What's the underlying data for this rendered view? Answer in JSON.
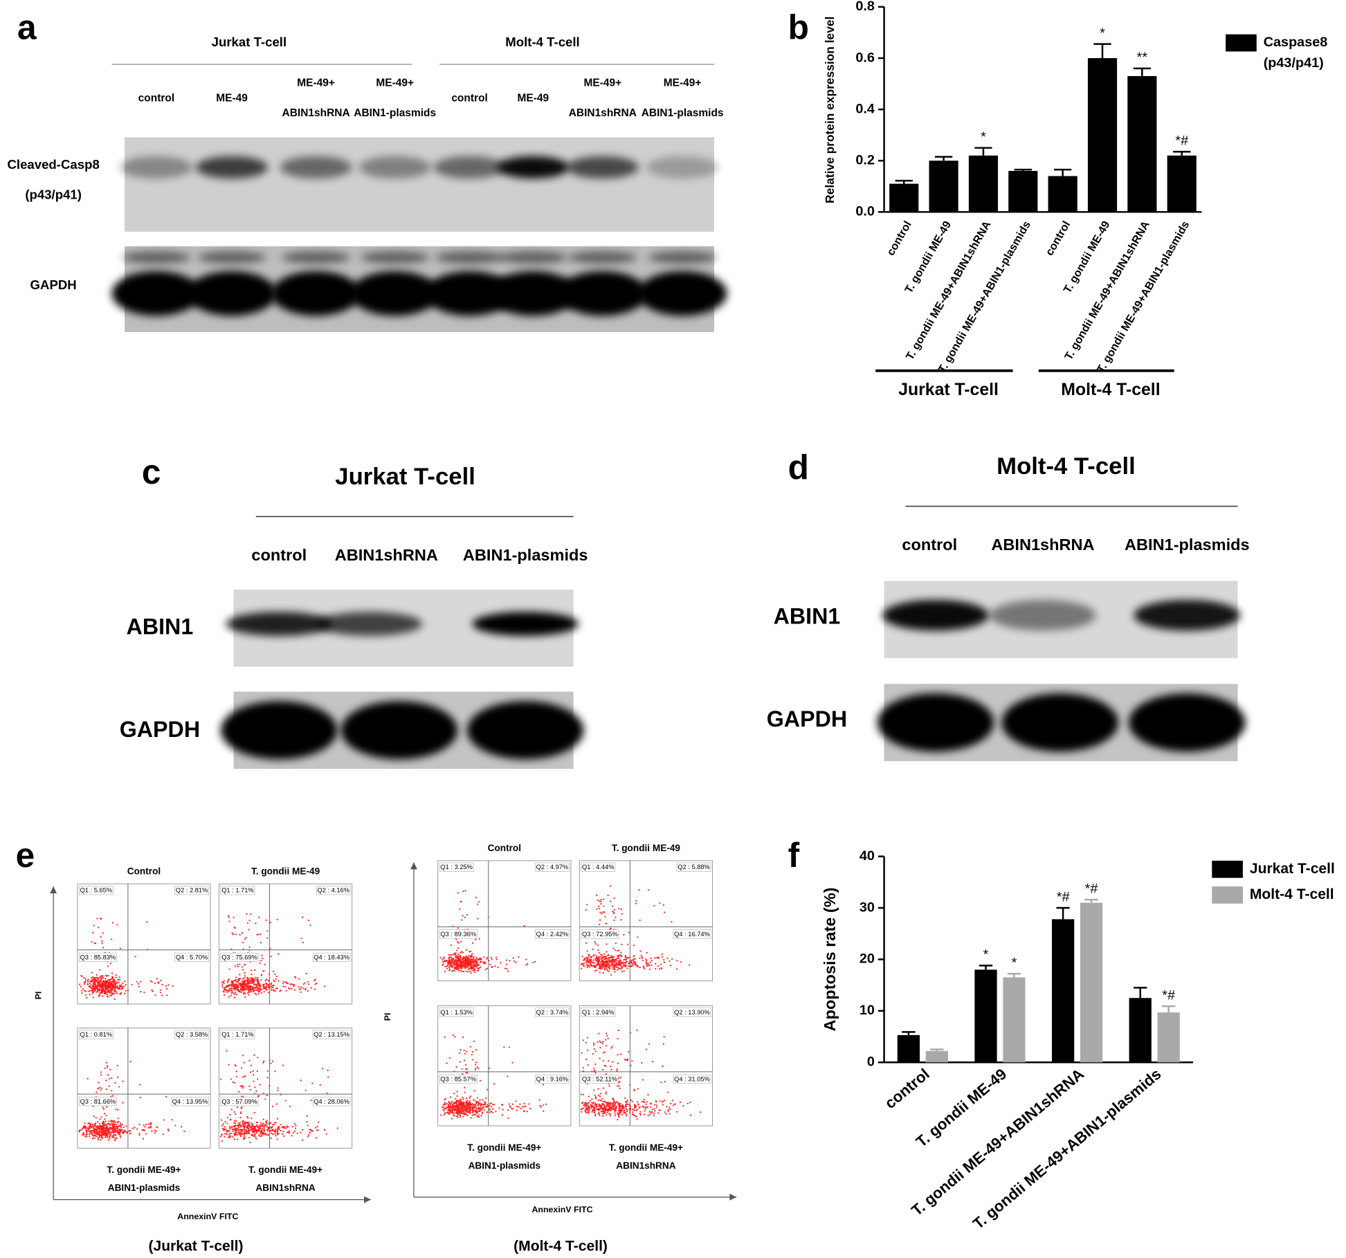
{
  "chart_data": [
    {
      "type": "bar",
      "y_label": "Relative protein expression level",
      "categories": [
        "control",
        "T. gondii ME-49",
        "T. gondii ME-49+ABIN1shRNA",
        "T. gondii ME-49+ABIN1-plasmids",
        "control",
        "T. gondii ME-49",
        "T. gondii ME-49+ABIN1shRNA",
        "T. gondii ME-49+ABIN1-plasmids"
      ],
      "groups": [
        "Jurkat T-cell",
        "Molt-4 T-cell"
      ],
      "series": [
        {
          "name": "Caspase8 (p43/p41)",
          "color": "#000000",
          "values": [
            0.11,
            0.2,
            0.22,
            0.16,
            0.14,
            0.6,
            0.53,
            0.22
          ],
          "errors": [
            0.012,
            0.015,
            0.03,
            0.005,
            0.025,
            0.055,
            0.03,
            0.015
          ],
          "significance": [
            null,
            null,
            "*",
            null,
            null,
            "*",
            "**",
            "*#"
          ]
        }
      ],
      "ylim": [
        0,
        0.8
      ],
      "yticks": [
        {
          "value": 0,
          "label": "0.0"
        },
        0.2,
        0.4,
        0.6,
        0.8
      ],
      "grid": false,
      "legend": "right"
    },
    {
      "type": "bar",
      "y_label": "Apoptosis rate (%)",
      "categories": [
        "control",
        "T. gondii ME-49",
        "T. gondii ME-49+ABIN1shRNA",
        "T. gondii ME-49+ABIN1-plasmids"
      ],
      "series": [
        {
          "name": "Jurkat T-cell",
          "color": "#000000",
          "values": [
            5.3,
            18,
            27.8,
            12.5
          ],
          "errors": [
            0.6,
            0.8,
            2.2,
            2.0
          ],
          "significance": [
            null,
            "*",
            "*#",
            null
          ]
        },
        {
          "name": "Molt-4 T-cell",
          "color": "#a9a9a9",
          "values": [
            2.2,
            16.5,
            31,
            9.7
          ],
          "errors": [
            0.3,
            0.7,
            0.6,
            1.2
          ],
          "significance": [
            null,
            "*",
            "*#",
            "*#"
          ]
        }
      ],
      "ylim": [
        0,
        40
      ],
      "yticks": [
        0,
        10,
        20,
        30,
        40
      ],
      "grid": false,
      "legend": "right"
    }
  ],
  "panel_labels": [
    "a",
    "b",
    "c",
    "d",
    "e",
    "f"
  ],
  "blot_a": {
    "groups": [
      "Jurkat T-cell",
      "Molt-4 T-cell"
    ],
    "lanes": [
      [
        "control"
      ],
      [
        "ME-49"
      ],
      [
        "ME-49+",
        "ABIN1shRNA"
      ],
      [
        "ME-49+",
        "ABIN1-plasmids"
      ],
      [
        "control"
      ],
      [
        "ME-49"
      ],
      [
        "ME-49+",
        "ABIN1shRNA"
      ],
      [
        "ME-49+",
        "ABIN1-plasmids"
      ]
    ],
    "rows": [
      [
        "Cleaved-Casp8",
        "(p43/p41)"
      ],
      [
        "GAPDH"
      ]
    ]
  },
  "blot_c": {
    "title": "Jurkat T-cell",
    "lanes": [
      "control",
      "ABIN1shRNA",
      "ABIN1-plasmids"
    ],
    "rows": [
      "ABIN1",
      "GAPDH"
    ]
  },
  "blot_d": {
    "title": "Molt-4 T-cell",
    "lanes": [
      "control",
      "ABIN1shRNA",
      "ABIN1-plasmids"
    ],
    "rows": [
      "ABIN1",
      "GAPDH"
    ]
  },
  "flow_e": {
    "y_label": "PI",
    "x_label": "AnnexinV FITC",
    "groups": [
      {
        "caption": "(Jurkat T-cell)",
        "plots": [
          {
            "title": [
              "Control"
            ],
            "quadrants": [
              "Q1 : 5.65%",
              "Q2 : 2.81%",
              "Q3 : 85.83%",
              "Q4 : 5.70%"
            ]
          },
          {
            "title": [
              "T. gondii ME-49"
            ],
            "quadrants": [
              "Q1 : 1.71%",
              "Q2 : 4.16%",
              "Q3 : 75.69%",
              "Q4 : 18.43%"
            ]
          },
          {
            "title": [
              "T. gondii ME-49+",
              "ABIN1-plasmids"
            ],
            "quadrants": [
              "Q1 : 0.81%",
              "Q2 : 3.58%",
              "Q3 : 81.66%",
              "Q4 : 13.95%"
            ]
          },
          {
            "title": [
              "T. gondii ME-49+",
              "ABIN1shRNA"
            ],
            "quadrants": [
              "Q1 : 1.71%",
              "Q2 : 13.15%",
              "Q3 : 57.09%",
              "Q4 : 28.06%"
            ]
          }
        ]
      },
      {
        "caption": "(Molt-4 T-cell)",
        "plots": [
          {
            "title": [
              "Control"
            ],
            "quadrants": [
              "Q1 : 3.25%",
              "Q2 : 4.97%",
              "Q3 : 89.36%",
              "Q4 : 2.42%"
            ]
          },
          {
            "title": [
              "T. gondii ME-49"
            ],
            "quadrants": [
              "Q1 : 4.44%",
              "Q2 : 5.88%",
              "Q3 : 72.95%",
              "Q4 : 16.74%"
            ]
          },
          {
            "title": [
              "T. gondii ME-49+",
              "ABIN1-plasmids"
            ],
            "quadrants": [
              "Q1 : 1.53%",
              "Q2 : 3.74%",
              "Q3 : 85.57%",
              "Q4 : 9.16%"
            ]
          },
          {
            "title": [
              "T. gondii ME-49+",
              "ABIN1shRNA"
            ],
            "quadrants": [
              "Q1 : 2.94%",
              "Q2 : 13.90%",
              "Q3 : 52.11%",
              "Q4 : 31.05%"
            ]
          }
        ]
      }
    ]
  }
}
